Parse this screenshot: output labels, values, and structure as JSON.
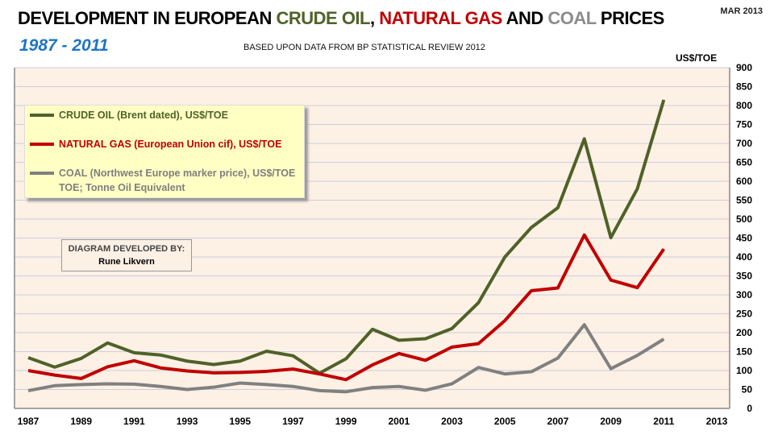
{
  "header": {
    "title_parts": [
      "DEVELOPMENT IN EUROPEAN ",
      "CRUDE OIL",
      ", ",
      "NATURAL GAS",
      " AND ",
      "COAL",
      " PRICES"
    ],
    "date": "MAR 2013",
    "years": "1987 - 2011",
    "source": "BASED UPON DATA FROM BP STATISTICAL REVIEW 2012"
  },
  "legend": {
    "items": [
      "CRUDE OIL (Brent dated),  US$/TOE",
      "NATURAL GAS (European Union cif), US$/TOE",
      "COAL (Northwest Europe marker price), US$/TOE"
    ],
    "note": "TOE; Tonne Oil Equivalent"
  },
  "credit": {
    "label": "DIAGRAM DEVELOPED BY:",
    "name": "Rune Likvern"
  },
  "colors": {
    "oil": "#4f6228",
    "gas": "#c00000",
    "coal": "#808080",
    "plot_bg": "#fdf0e4",
    "grid": "#c8d0e0"
  },
  "chart_data": {
    "type": "line",
    "title": "DEVELOPMENT IN EUROPEAN CRUDE OIL, NATURAL GAS AND COAL PRICES",
    "ylabel": "US$/TOE",
    "ylim": [
      0,
      900
    ],
    "yticks": [
      0,
      50,
      100,
      150,
      200,
      250,
      300,
      350,
      400,
      450,
      500,
      550,
      600,
      650,
      700,
      750,
      800,
      850,
      900
    ],
    "xlim": [
      1987,
      2013
    ],
    "xticks": [
      1987,
      1989,
      1991,
      1993,
      1995,
      1997,
      1999,
      2001,
      2003,
      2005,
      2007,
      2009,
      2011,
      2013
    ],
    "grid": true,
    "legend_position": "top-left",
    "x": [
      1987,
      1988,
      1989,
      1990,
      1991,
      1992,
      1993,
      1994,
      1995,
      1996,
      1997,
      1998,
      1999,
      2000,
      2001,
      2002,
      2003,
      2004,
      2005,
      2006,
      2007,
      2008,
      2009,
      2010,
      2011
    ],
    "series": [
      {
        "name": "CRUDE OIL",
        "values": [
          134,
          109,
          132,
          173,
          147,
          141,
          125,
          116,
          125,
          151,
          139,
          93,
          131,
          209,
          180,
          184,
          211,
          279,
          400,
          478,
          530,
          712,
          451,
          580,
          815
        ]
      },
      {
        "name": "NATURAL GAS",
        "values": [
          100,
          88,
          79,
          110,
          126,
          107,
          99,
          94,
          95,
          98,
          104,
          91,
          76,
          115,
          145,
          127,
          162,
          171,
          232,
          311,
          318,
          458,
          339,
          319,
          421
        ]
      },
      {
        "name": "COAL",
        "values": [
          47,
          60,
          63,
          65,
          64,
          58,
          50,
          56,
          67,
          63,
          58,
          47,
          44,
          55,
          58,
          48,
          65,
          108,
          91,
          97,
          133,
          221,
          105,
          140,
          183
        ]
      }
    ]
  }
}
